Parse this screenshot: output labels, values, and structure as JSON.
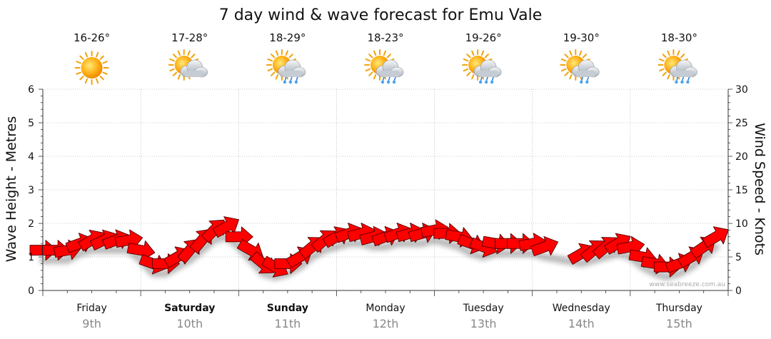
{
  "title": "7 day wind & wave forecast for Emu Vale",
  "credit": "www.seabreeze.com.au",
  "colors": {
    "arrow": "#ff0000",
    "arrow_stroke": "#550000",
    "grid": "#999999",
    "day_number": "#888888"
  },
  "days": [
    {
      "name": "Friday",
      "date": "9th",
      "temp": "16-26°",
      "icon": "sunny-icon",
      "bold": false
    },
    {
      "name": "Saturday",
      "date": "10th",
      "temp": "17-28°",
      "icon": "partly-cloudy-icon",
      "bold": true
    },
    {
      "name": "Sunday",
      "date": "11th",
      "temp": "18-29°",
      "icon": "showers-icon",
      "bold": true
    },
    {
      "name": "Monday",
      "date": "12th",
      "temp": "18-23°",
      "icon": "showers-icon",
      "bold": false
    },
    {
      "name": "Tuesday",
      "date": "13th",
      "temp": "19-26°",
      "icon": "showers-icon",
      "bold": false
    },
    {
      "name": "Wednesday",
      "date": "14th",
      "temp": "19-30°",
      "icon": "light-showers-icon",
      "bold": false
    },
    {
      "name": "Thursday",
      "date": "15th",
      "temp": "18-30°",
      "icon": "showers-icon",
      "bold": false
    }
  ],
  "chart_data": {
    "type": "line",
    "title": "7 day wind & wave forecast for Emu Vale",
    "xlabel": "",
    "ylabel": "Wave Height - Metres",
    "y2label": "Wind Speed - Knots",
    "ylim": [
      0,
      6
    ],
    "y2lim": [
      0,
      30
    ],
    "yticks": [
      "0",
      "1",
      "2",
      "3",
      "4",
      "5",
      "6"
    ],
    "y2ticks": [
      "0",
      "5",
      "10",
      "15",
      "20",
      "25",
      "30"
    ],
    "categories": [
      "Friday 9th",
      "Saturday 10th",
      "Sunday 11th",
      "Monday 12th",
      "Tuesday 13th",
      "Wednesday 14th",
      "Thursday 15th"
    ],
    "wind_series": {
      "name": "Wind Speed (knots)",
      "x_days": [
        0.0,
        0.125,
        0.25,
        0.375,
        0.5,
        0.625,
        0.75,
        0.875,
        1.0,
        1.125,
        1.25,
        1.375,
        1.5,
        1.625,
        1.75,
        1.875,
        2.0,
        2.125,
        2.25,
        2.375,
        2.5,
        2.625,
        2.75,
        2.875,
        3.0,
        3.125,
        3.25,
        3.375,
        3.5,
        3.625,
        3.75,
        3.875,
        4.0,
        4.125,
        4.25,
        4.375,
        4.5,
        4.625,
        4.75,
        4.875,
        5.0,
        5.125,
        5.5,
        5.625,
        5.75,
        5.875,
        6.0,
        6.125,
        6.25,
        6.375,
        6.5,
        6.625,
        6.75,
        6.875
      ],
      "values": [
        6,
        6,
        6,
        7,
        7.5,
        7.5,
        7.5,
        7.5,
        6,
        4,
        4,
        5,
        6,
        7.5,
        9,
        9.5,
        8,
        6,
        4,
        3.5,
        4,
        5,
        6.5,
        7.5,
        8,
        8.5,
        8.5,
        8,
        8,
        8.5,
        8.5,
        8.5,
        9,
        8.5,
        8,
        7,
        6.5,
        7,
        7,
        7,
        7,
        6.5,
        5.5,
        6,
        6.5,
        7,
        6.5,
        5,
        4,
        3.5,
        4,
        5,
        6.5,
        8
      ],
      "direction_deg": [
        270,
        270,
        260,
        250,
        240,
        245,
        250,
        260,
        280,
        290,
        270,
        240,
        220,
        220,
        225,
        240,
        270,
        300,
        310,
        300,
        270,
        240,
        230,
        230,
        240,
        250,
        255,
        255,
        250,
        250,
        255,
        255,
        260,
        270,
        280,
        290,
        290,
        280,
        270,
        270,
        260,
        250,
        240,
        230,
        230,
        240,
        260,
        280,
        280,
        270,
        250,
        240,
        235,
        240
      ]
    }
  }
}
